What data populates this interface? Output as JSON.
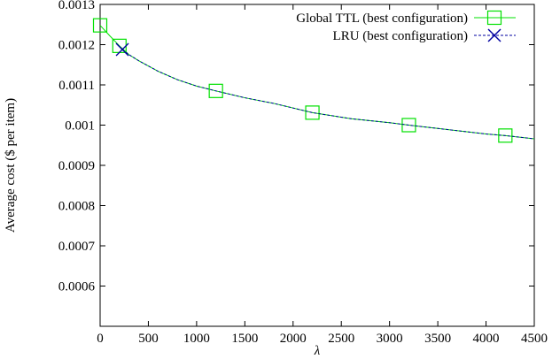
{
  "chart_data": {
    "type": "line",
    "title": "",
    "xlabel": "λ",
    "ylabel": "Average cost ($ per item)",
    "xlim": [
      0,
      4500
    ],
    "ylim": [
      0.0005,
      0.0013
    ],
    "xticks": [
      0,
      500,
      1000,
      1500,
      2000,
      2500,
      3000,
      3500,
      4000,
      4500
    ],
    "yticks": [
      0.0006,
      0.0007,
      0.0008,
      0.0009,
      0.001,
      0.0011,
      0.0012,
      0.0013
    ],
    "xtick_labels": [
      "0",
      "500",
      "1000",
      "1500",
      "2000",
      "2500",
      "3000",
      "3500",
      "4000",
      "4500"
    ],
    "ytick_labels": [
      "0.0006",
      "0.0007",
      "0.0008",
      "0.0009",
      "0.001",
      "0.0011",
      "0.0012",
      "0.0013"
    ],
    "grid": false,
    "legend_position": "top-right",
    "series": [
      {
        "name": "Global TTL (best configuration)",
        "color": "#00e000",
        "line_style": "solid",
        "marker": "square",
        "curve": {
          "x": [
            0,
            100,
            200,
            300,
            400,
            600,
            800,
            1000,
            1200,
            1500,
            1800,
            2200,
            2600,
            3000,
            3200,
            3600,
            4000,
            4200,
            4500
          ],
          "y": [
            0.001248,
            0.001222,
            0.001197,
            0.001175,
            0.00116,
            0.001134,
            0.001113,
            0.001097,
            0.001085,
            0.001068,
            0.001054,
            0.001031,
            0.001016,
            0.001006,
            0.001,
            0.000989,
            0.000978,
            0.000974,
            0.000966
          ]
        },
        "markers": {
          "x": [
            0,
            200,
            1200,
            2200,
            3200,
            4200
          ],
          "y": [
            0.001248,
            0.001197,
            0.001085,
            0.001031,
            0.001,
            0.000974
          ]
        }
      },
      {
        "name": "LRU (best configuration)",
        "color": "#0000a0",
        "line_style": "dashed",
        "marker": "x",
        "curve": {
          "x": [
            230,
            300,
            400,
            600,
            800,
            1000,
            1200,
            1500,
            1800,
            2200,
            2600,
            3000,
            3200,
            3600,
            4000,
            4200,
            4500
          ],
          "y": [
            0.001188,
            0.001175,
            0.00116,
            0.001134,
            0.001113,
            0.001097,
            0.001085,
            0.001068,
            0.001054,
            0.001031,
            0.001016,
            0.001006,
            0.001,
            0.000989,
            0.000978,
            0.000974,
            0.000966
          ]
        },
        "markers": {
          "x": [
            230
          ],
          "y": [
            0.001188
          ]
        }
      }
    ]
  }
}
